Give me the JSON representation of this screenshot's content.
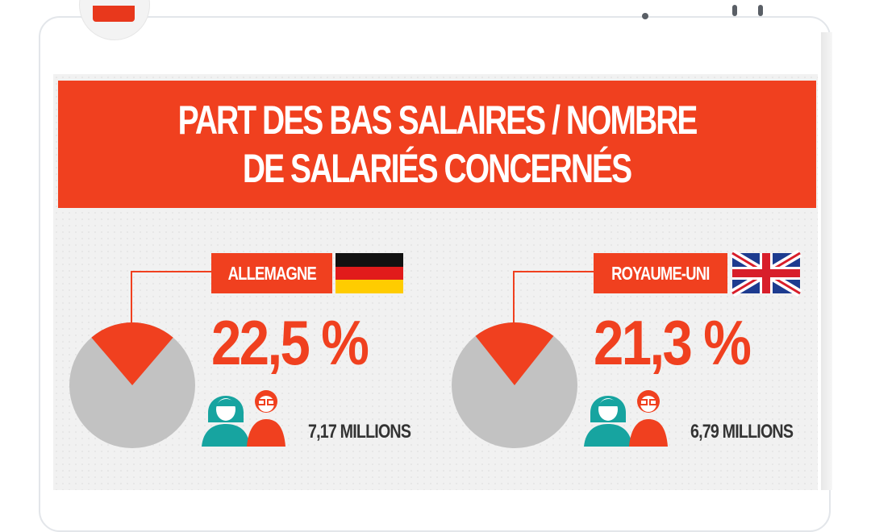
{
  "chart_data": {
    "type": "pie",
    "title_lines": [
      "PART DES BAS SALAIRES / NOMBRE",
      "DE SALARIÉS CONCERNÉS"
    ],
    "series": [
      {
        "name": "ALLEMAGNE",
        "value_label": "22,5 %",
        "value": 22.5,
        "count_label": "7,17 MILLIONS"
      },
      {
        "name": "ROYAUME-UNI",
        "value_label": "21,3 %",
        "value": 21.3,
        "count_label": "6,79 MILLIONS"
      }
    ]
  },
  "colors": {
    "accent": "#f0401f",
    "pie_rest": "#c2c2c2",
    "icon_teal": "#17a4a0",
    "icon_red": "#f0401f"
  },
  "icons": [
    "woman-icon",
    "man-icon",
    "germany-flag-icon",
    "uk-flag-icon"
  ]
}
